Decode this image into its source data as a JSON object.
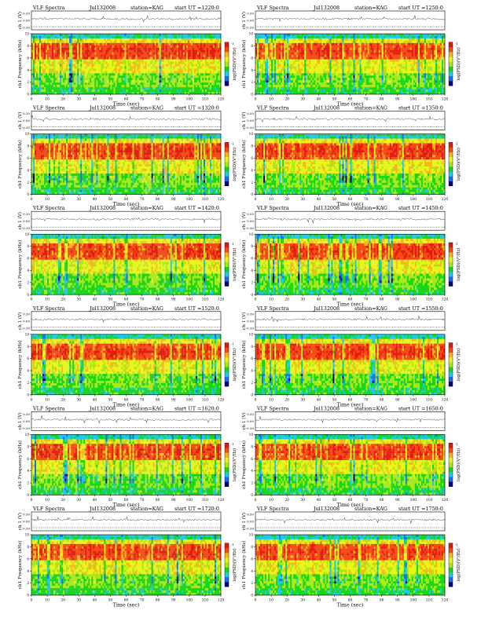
{
  "colors": {
    "scale": [
      "#00007a",
      "#1c6cf0",
      "#1ec8f0",
      "#16d616",
      "#a8e81a",
      "#e8f51a",
      "#f5b81a",
      "#f54a16",
      "#e01a0e"
    ],
    "frame": "#000000",
    "trace": "#333333"
  },
  "chart_data": [
    {
      "type": "heatmap",
      "title": "VLF Spectra",
      "date": "Jul132008",
      "station": "station=KAG",
      "start": "start UT =1220:0",
      "ch_label": "ch 1 (V)",
      "ch_ticks": [
        "0.30",
        "0.00",
        "-0.30"
      ],
      "ylabel": "ch1 Frequency (kHz)",
      "xlabel": "Time (sec)",
      "xlim": [
        0,
        120
      ],
      "ylim": [
        0,
        10
      ],
      "xticks": [
        "0",
        "10",
        "20",
        "30",
        "40",
        "50",
        "60",
        "70",
        "80",
        "90",
        "100",
        "110",
        "120"
      ],
      "yticks": [
        "0",
        "2",
        "4",
        "6",
        "8",
        "10"
      ],
      "colorbar_label": "log(PSD)(V²/Hz)",
      "colorbar_ticks": [
        "-1",
        "-"
      ],
      "seed": 11
    },
    {
      "type": "heatmap",
      "title": "VLF Spectra",
      "date": "Jul132008",
      "station": "station=KAG",
      "start": "start UT =1250:0",
      "ch_label": "ch 1 (V)",
      "ch_ticks": [
        "0.30",
        "0.00",
        "-0.30"
      ],
      "ylabel": "ch1 Frequency (kHz)",
      "xlabel": "Time (sec)",
      "xlim": [
        0,
        120
      ],
      "ylim": [
        0,
        10
      ],
      "xticks": [
        "0",
        "10",
        "20",
        "30",
        "40",
        "50",
        "60",
        "70",
        "80",
        "90",
        "100",
        "110",
        "120"
      ],
      "yticks": [
        "0",
        "2",
        "4",
        "6",
        "8",
        "10"
      ],
      "colorbar_label": "log(PSD)(V²/Hz)",
      "colorbar_ticks": [
        "-1",
        "-"
      ],
      "seed": 23
    },
    {
      "type": "heatmap",
      "title": "VLF Spectra",
      "date": "Jul132008",
      "station": "station=KAG",
      "start": "start UT =1320:0",
      "ch_label": "ch 1 (V)",
      "ch_ticks": [
        "0.30",
        "0.00",
        "-0.30"
      ],
      "ylabel": "ch1 Frequency (kHz)",
      "xlabel": "Time (sec)",
      "xlim": [
        0,
        120
      ],
      "ylim": [
        0,
        10
      ],
      "xticks": [
        "0",
        "10",
        "20",
        "30",
        "40",
        "50",
        "60",
        "70",
        "80",
        "90",
        "100",
        "110",
        "120"
      ],
      "yticks": [
        "0",
        "2",
        "4",
        "6",
        "8",
        "10"
      ],
      "colorbar_label": "log(PSD)(V²/Hz)",
      "colorbar_ticks": [
        "-1",
        "-"
      ],
      "seed": 37
    },
    {
      "type": "heatmap",
      "title": "VLF Spectra",
      "date": "Jul132008",
      "station": "station=KAG",
      "start": "start UT =1350:0",
      "ch_label": "ch 1 (V)",
      "ch_ticks": [
        "0.30",
        "0.00",
        "-0.30"
      ],
      "ylabel": "ch1 Frequency (kHz)",
      "xlabel": "Time (sec)",
      "xlim": [
        0,
        120
      ],
      "ylim": [
        0,
        10
      ],
      "xticks": [
        "0",
        "10",
        "20",
        "30",
        "40",
        "50",
        "60",
        "70",
        "80",
        "90",
        "100",
        "110",
        "120"
      ],
      "yticks": [
        "0",
        "2",
        "4",
        "6",
        "8",
        "10"
      ],
      "colorbar_label": "log(PSD)(V²/Hz)",
      "colorbar_ticks": [
        "-1",
        "-"
      ],
      "seed": 41
    },
    {
      "type": "heatmap",
      "title": "VLF Spectra",
      "date": "Jul132008",
      "station": "station=KAG",
      "start": "start UT =1420:0",
      "ch_label": "ch 1 (V)",
      "ch_ticks": [
        "0.30",
        "0.00",
        "-0.30"
      ],
      "ylabel": "ch1 Frequency (kHz)",
      "xlabel": "Time (sec)",
      "xlim": [
        0,
        120
      ],
      "ylim": [
        0,
        10
      ],
      "xticks": [
        "0",
        "10",
        "20",
        "30",
        "40",
        "50",
        "60",
        "70",
        "80",
        "90",
        "100",
        "110",
        "120"
      ],
      "yticks": [
        "0",
        "2",
        "4",
        "6",
        "8",
        "10"
      ],
      "colorbar_label": "log(PSD)(V²/Hz)",
      "colorbar_ticks": [
        "-1",
        "-"
      ],
      "seed": 53
    },
    {
      "type": "heatmap",
      "title": "VLF Spectra",
      "date": "Jul132008",
      "station": "station=KAG",
      "start": "start UT =1450:0",
      "ch_label": "ch 1 (V)",
      "ch_ticks": [
        "0.30",
        "0.00",
        "-0.30"
      ],
      "ylabel": "ch1 Frequency (kHz)",
      "xlabel": "Time (sec)",
      "xlim": [
        0,
        120
      ],
      "ylim": [
        0,
        10
      ],
      "xticks": [
        "0",
        "10",
        "20",
        "30",
        "40",
        "50",
        "60",
        "70",
        "80",
        "90",
        "100",
        "110",
        "120"
      ],
      "yticks": [
        "0",
        "2",
        "4",
        "6",
        "8",
        "10"
      ],
      "colorbar_label": "log(PSD)(V²/Hz)",
      "colorbar_ticks": [
        "-1",
        "-"
      ],
      "seed": 67
    },
    {
      "type": "heatmap",
      "title": "VLF Spectra",
      "date": "Jul132008",
      "station": "station=KAG",
      "start": "start UT =1520:0",
      "ch_label": "ch 1 (V)",
      "ch_ticks": [
        "0.30",
        "0.00",
        "-0.30"
      ],
      "ylabel": "ch1 Frequency (kHz)",
      "xlabel": "Time (sec)",
      "xlim": [
        0,
        120
      ],
      "ylim": [
        0,
        10
      ],
      "xticks": [
        "0",
        "10",
        "20",
        "30",
        "40",
        "50",
        "60",
        "70",
        "80",
        "90",
        "100",
        "110",
        "120"
      ],
      "yticks": [
        "0",
        "2",
        "4",
        "6",
        "8",
        "10"
      ],
      "colorbar_label": "log(PSD)(V²/Hz)",
      "colorbar_ticks": [
        "-1",
        "-"
      ],
      "seed": 71
    },
    {
      "type": "heatmap",
      "title": "VLF Spectra",
      "date": "Jul132008",
      "station": "station=KAG",
      "start": "start UT =1550:0",
      "ch_label": "ch 1 (V)",
      "ch_ticks": [
        "0.30",
        "0.00",
        "-0.30"
      ],
      "ylabel": "ch1 Frequency (kHz)",
      "xlabel": "Time (sec)",
      "xlim": [
        0,
        120
      ],
      "ylim": [
        0,
        10
      ],
      "xticks": [
        "0",
        "10",
        "20",
        "30",
        "40",
        "50",
        "60",
        "70",
        "80",
        "90",
        "100",
        "110",
        "120"
      ],
      "yticks": [
        "0",
        "2",
        "4",
        "6",
        "8",
        "10"
      ],
      "colorbar_label": "log(PSD)(V²/Hz)",
      "colorbar_ticks": [
        "-1",
        "-"
      ],
      "seed": 83
    },
    {
      "type": "heatmap",
      "title": "VLF Spectra",
      "date": "Jul132008",
      "station": "station=KAG",
      "start": "start UT =1620:0",
      "ch_label": "ch 1 (V)",
      "ch_ticks": [
        "0.30",
        "0.00",
        "-0.30"
      ],
      "ylabel": "ch1 Frequency (kHz)",
      "xlabel": "Time (sec)",
      "xlim": [
        0,
        120
      ],
      "ylim": [
        0,
        10
      ],
      "xticks": [
        "0",
        "10",
        "20",
        "30",
        "40",
        "50",
        "60",
        "70",
        "80",
        "90",
        "100",
        "110",
        "120"
      ],
      "yticks": [
        "0",
        "2",
        "4",
        "6",
        "8",
        "10"
      ],
      "colorbar_label": "log(PSD)(V²/Hz)",
      "colorbar_ticks": [
        "-1",
        "-"
      ],
      "seed": 97
    },
    {
      "type": "heatmap",
      "title": "VLF Spectra",
      "date": "Jul132008",
      "station": "station=KAG",
      "start": "start UT =1650:0",
      "ch_label": "ch 1 (V)",
      "ch_ticks": [
        "0.30",
        "0.00",
        "-0.30"
      ],
      "ylabel": "ch1 Frequency (kHz)",
      "xlabel": "Time (sec)",
      "xlim": [
        0,
        120
      ],
      "ylim": [
        0,
        10
      ],
      "xticks": [
        "0",
        "10",
        "20",
        "30",
        "40",
        "50",
        "60",
        "70",
        "80",
        "90",
        "100",
        "110",
        "120"
      ],
      "yticks": [
        "0",
        "2",
        "4",
        "6",
        "8",
        "10"
      ],
      "colorbar_label": "log(PSD)(V²/Hz)",
      "colorbar_ticks": [
        "-1",
        "-"
      ],
      "seed": 101
    },
    {
      "type": "heatmap",
      "title": "VLF Spectra",
      "date": "Jul132008",
      "station": "station=KAG",
      "start": "start UT =1720:0",
      "ch_label": "ch 1 (V)",
      "ch_ticks": [
        "0.30",
        "0.00",
        "-0.30"
      ],
      "ylabel": "ch1 Frequency (kHz)",
      "xlabel": "Time (sec)",
      "xlim": [
        0,
        120
      ],
      "ylim": [
        0,
        10
      ],
      "xticks": [
        "0",
        "10",
        "20",
        "30",
        "40",
        "50",
        "60",
        "70",
        "80",
        "90",
        "100",
        "110",
        "120"
      ],
      "yticks": [
        "0",
        "2",
        "4",
        "6",
        "8",
        "10"
      ],
      "colorbar_label": "log(PSD)(V²/Hz)",
      "colorbar_ticks": [
        "-1",
        "-"
      ],
      "seed": 113
    },
    {
      "type": "heatmap",
      "title": "VLF Spectra",
      "date": "Jul132008",
      "station": "station=KAG",
      "start": "start UT =1750:0",
      "ch_label": "ch 1 (V)",
      "ch_ticks": [
        "0.30",
        "0.00",
        "-0.30"
      ],
      "ylabel": "ch1 Frequency (kHz)",
      "xlabel": "Time (sec)",
      "xlim": [
        0,
        120
      ],
      "ylim": [
        0,
        10
      ],
      "xticks": [
        "0",
        "10",
        "20",
        "30",
        "40",
        "50",
        "60",
        "70",
        "80",
        "90",
        "100",
        "110",
        "120"
      ],
      "yticks": [
        "0",
        "2",
        "4",
        "6",
        "8",
        "10"
      ],
      "colorbar_label": "log(PSD)(V²/Hz)",
      "colorbar_ticks": [
        "-1",
        "-"
      ],
      "seed": 127
    }
  ]
}
